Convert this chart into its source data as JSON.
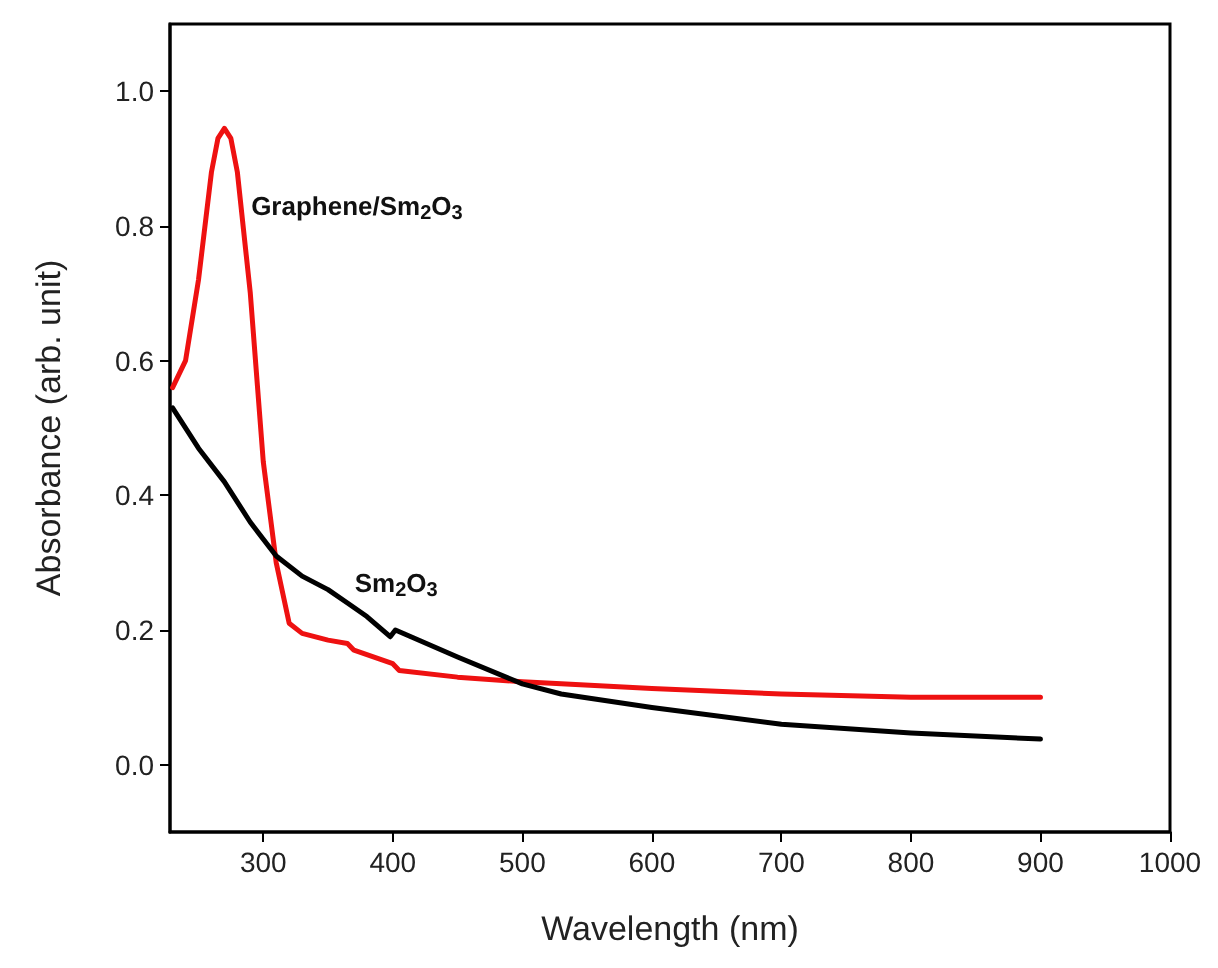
{
  "chart_data": {
    "type": "line",
    "xlabel": "Wavelength (nm)",
    "ylabel": "Absorbance (arb. unit)",
    "xlim": [
      228,
      1000
    ],
    "ylim": [
      -0.1,
      1.1
    ],
    "xticks": [
      300,
      400,
      500,
      600,
      700,
      800,
      900,
      1000
    ],
    "yticks": [
      {
        "value": 0,
        "label": "0.0"
      },
      {
        "value": 0.2,
        "label": "0.2"
      },
      {
        "value": 0.4,
        "label": "0.4"
      },
      {
        "value": 0.6,
        "label": "0.6"
      },
      {
        "value": 0.8,
        "label": "0.8"
      },
      {
        "value": 1,
        "label": "1.0"
      }
    ],
    "marker": "none",
    "series": [
      {
        "color": "#ee1111",
        "x": [
          230,
          240,
          250,
          260,
          265,
          270,
          275,
          280,
          290,
          300,
          310,
          320,
          330,
          350,
          365,
          370,
          400,
          405,
          450,
          500,
          530,
          600,
          700,
          800,
          900
        ],
        "values": [
          0.56,
          0.6,
          0.72,
          0.88,
          0.93,
          0.945,
          0.93,
          0.88,
          0.7,
          0.45,
          0.3,
          0.21,
          0.195,
          0.185,
          0.18,
          0.17,
          0.15,
          0.14,
          0.13,
          0.123,
          0.12,
          0.113,
          0.105,
          0.1,
          0.1
        ]
      },
      {
        "color": "#000000",
        "x": [
          230,
          250,
          270,
          290,
          310,
          330,
          350,
          365,
          380,
          398,
          402,
          450,
          500,
          530,
          600,
          700,
          800,
          900
        ],
        "values": [
          0.53,
          0.47,
          0.42,
          0.36,
          0.31,
          0.28,
          0.26,
          0.24,
          0.22,
          0.19,
          0.2,
          0.16,
          0.12,
          0.105,
          0.085,
          0.06,
          0.047,
          0.038
        ]
      }
    ],
    "annotations": [
      {
        "text": "Graphene/Sm$_{2}$O$_{3}$",
        "x": 286,
        "y": 0.8
      },
      {
        "text": "Sm$_{2}$O$_{3}$",
        "x": 366,
        "y": 0.24
      }
    ]
  }
}
